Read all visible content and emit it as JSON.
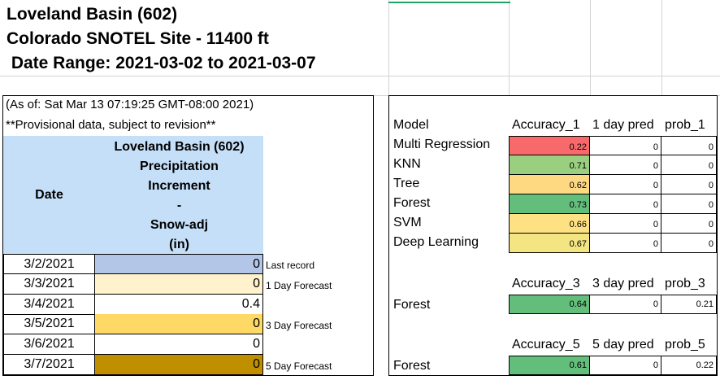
{
  "header": {
    "line1": "Loveland Basin (602)",
    "line2": "Colorado SNOTEL Site - 11400 ft",
    "line3": " Date Range: 2021-03-02 to 2021-03-07"
  },
  "left_table": {
    "as_of": "(As of: Sat Mar 13 07:19:25 GMT-08:00 2021)",
    "provisional": "**Provisional data, subject to revision**",
    "col_date": "Date",
    "col_value_lines": [
      "Loveland Basin (602)",
      "Precipitation",
      "Increment",
      "-",
      "Snow-adj",
      "(in)"
    ],
    "rows": [
      {
        "date": "3/2/2021",
        "value": "0",
        "label": "Last record",
        "color": "#b4c6e7"
      },
      {
        "date": "3/3/2021",
        "value": "0",
        "label": "1 Day Forecast",
        "color": "#fff2cc"
      },
      {
        "date": "3/4/2021",
        "value": "0.4",
        "label": "",
        "color": "#ffffff"
      },
      {
        "date": "3/5/2021",
        "value": "0",
        "label": "3 Day Forecast",
        "color": "#ffd966"
      },
      {
        "date": "3/6/2021",
        "value": "0",
        "label": "",
        "color": "#ffffff"
      },
      {
        "date": "3/7/2021",
        "value": "0",
        "label": "5 Day Forecast",
        "color": "#bf8f00"
      }
    ]
  },
  "right_table": {
    "headers1": [
      "Model",
      "Accuracy_1",
      "1 day pred",
      "prob_1"
    ],
    "models": [
      {
        "name": "Multi Regression",
        "acc": "0.22",
        "pred": "0",
        "prob": "0",
        "color": "#f8696b"
      },
      {
        "name": "KNN",
        "acc": "0.71",
        "pred": "0",
        "prob": "0",
        "color": "#9bcf80"
      },
      {
        "name": "Tree",
        "acc": "0.62",
        "pred": "0",
        "prob": "0",
        "color": "#ffd982"
      },
      {
        "name": "Forest",
        "acc": "0.73",
        "pred": "0",
        "prob": "0",
        "color": "#63be7b"
      },
      {
        "name": "SVM",
        "acc": "0.66",
        "pred": "0",
        "prob": "0",
        "color": "#fee182"
      },
      {
        "name": "Deep Learning",
        "acc": "0.67",
        "pred": "0",
        "prob": "0",
        "color": "#f4e583"
      }
    ],
    "headers3": [
      "Accuracy_3",
      "3 day pred",
      "prob_3"
    ],
    "forest3": {
      "name": "Forest",
      "acc": "0.64",
      "pred": "0",
      "prob": "0.21",
      "color": "#63be7b"
    },
    "headers5": [
      "Accuracy_5",
      "5 day pred",
      "prob_5"
    ],
    "forest5": {
      "name": "Forest",
      "acc": "0.61",
      "pred": "0",
      "prob": "0.22",
      "color": "#63be7b"
    }
  }
}
